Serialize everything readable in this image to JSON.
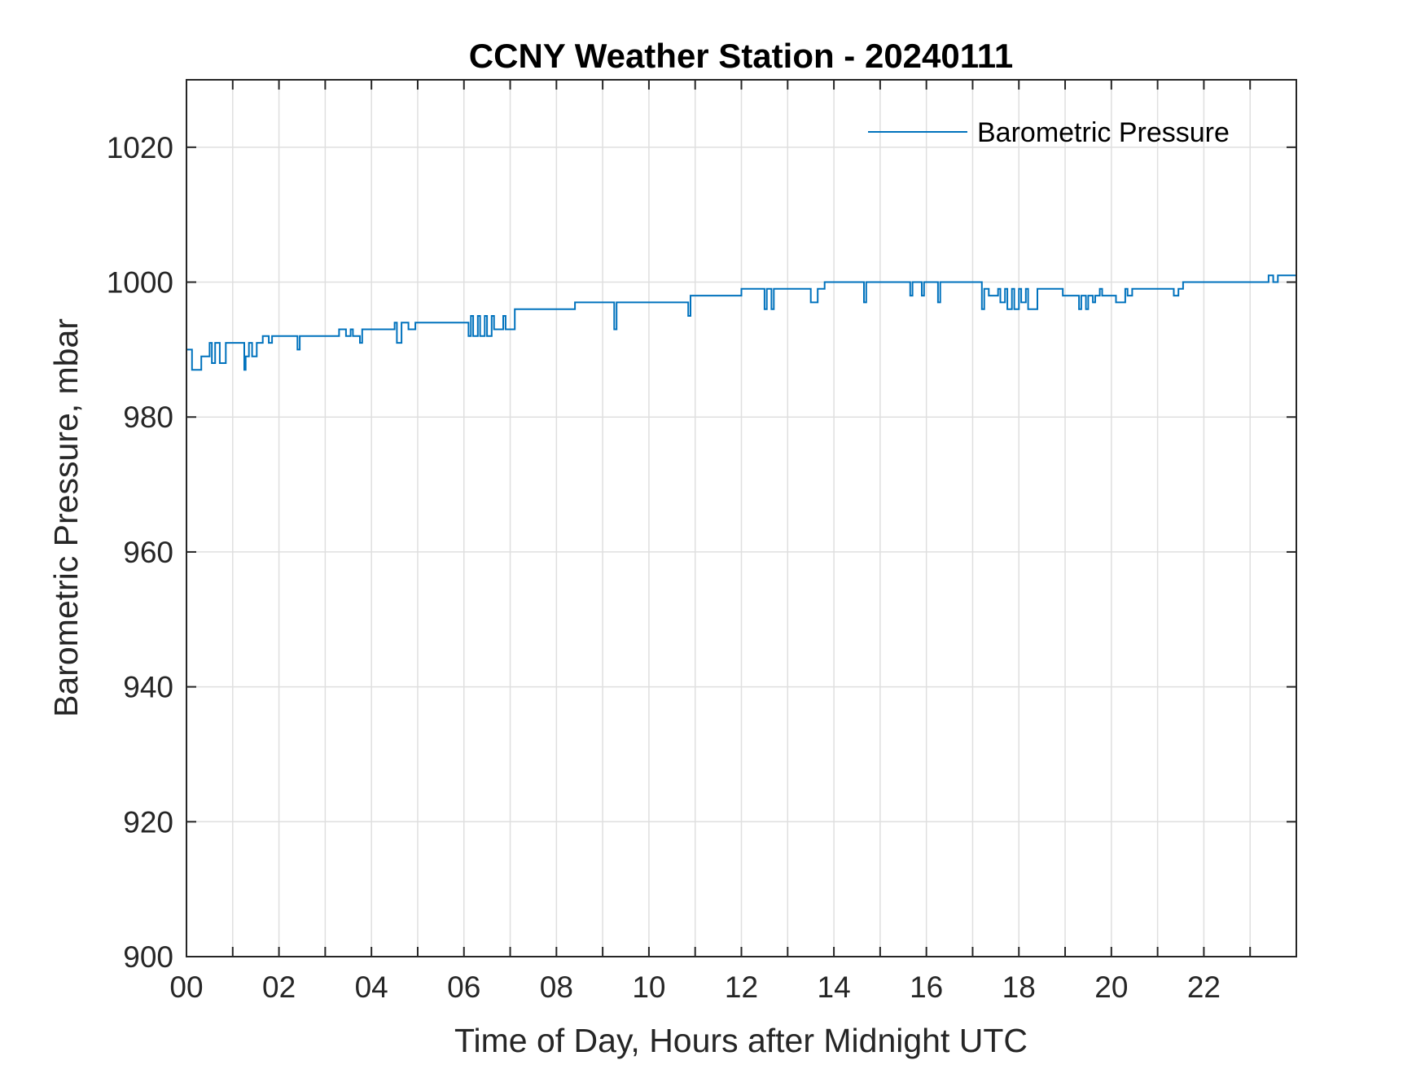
{
  "chart_data": {
    "type": "line",
    "title": "CCNY Weather Station - 20240111",
    "xlabel": "Time of Day, Hours after Midnight UTC",
    "ylabel": "Barometric Pressure, mbar",
    "xlim": [
      0,
      24
    ],
    "ylim": [
      900,
      1030
    ],
    "x_ticks": [
      0,
      2,
      4,
      6,
      8,
      10,
      12,
      14,
      16,
      18,
      20,
      22
    ],
    "x_tick_labels": [
      "00",
      "02",
      "04",
      "06",
      "08",
      "10",
      "12",
      "14",
      "16",
      "18",
      "20",
      "22"
    ],
    "x_minor_grid_step": 1,
    "y_ticks": [
      900,
      920,
      940,
      960,
      980,
      1000,
      1020
    ],
    "y_tick_labels": [
      "900",
      "920",
      "940",
      "960",
      "980",
      "1000",
      "1020"
    ],
    "grid": true,
    "legend_position": "top-right",
    "series": [
      {
        "name": "Barometric Pressure",
        "color": "#0072BD",
        "step": true,
        "x": [
          0,
          0.12,
          0.32,
          0.5,
          0.55,
          0.62,
          0.72,
          0.85,
          1.0,
          1.25,
          1.28,
          1.35,
          1.42,
          1.52,
          1.6,
          1.65,
          1.78,
          1.85,
          1.92,
          2.0,
          2.4,
          2.45,
          3.3,
          3.45,
          3.55,
          3.6,
          3.75,
          3.8,
          4.5,
          4.55,
          4.65,
          4.8,
          4.95,
          5.0,
          6.05,
          6.1,
          6.15,
          6.2,
          6.3,
          6.35,
          6.45,
          6.5,
          6.6,
          6.65,
          6.85,
          6.9,
          7.1,
          7.2,
          8.4,
          9.25,
          9.3,
          10.7,
          10.85,
          10.9,
          12.0,
          12.5,
          12.55,
          12.65,
          12.7,
          13.5,
          13.65,
          13.8,
          14.65,
          14.7,
          15.65,
          15.7,
          15.9,
          15.95,
          16.25,
          16.3,
          17.2,
          17.25,
          17.35,
          17.55,
          17.6,
          17.7,
          17.75,
          17.85,
          17.9,
          18.0,
          18.05,
          18.15,
          18.2,
          18.4,
          18.45,
          18.95,
          19.3,
          19.35,
          19.45,
          19.5,
          19.6,
          19.65,
          19.75,
          19.8,
          20.05,
          20.1,
          20.3,
          20.35,
          20.45,
          21.35,
          21.45,
          21.55,
          23.4,
          23.5,
          23.6,
          23.65,
          24.0
        ],
        "y": [
          990,
          987,
          989,
          991,
          988,
          991,
          988,
          991,
          991,
          987,
          989,
          991,
          989,
          991,
          991,
          992,
          991,
          992,
          992,
          992,
          990,
          992,
          993,
          992,
          993,
          992,
          991,
          993,
          994,
          991,
          994,
          993,
          994,
          994,
          994,
          992,
          995,
          992,
          995,
          992,
          995,
          992,
          995,
          993,
          995,
          993,
          996,
          996,
          997,
          993,
          997,
          997,
          995,
          998,
          999,
          996,
          999,
          996,
          999,
          997,
          999,
          1000,
          997,
          1000,
          998,
          1000,
          998,
          1000,
          997,
          1000,
          996,
          999,
          998,
          999,
          997,
          999,
          996,
          999,
          996,
          999,
          997,
          999,
          996,
          999,
          999,
          998,
          996,
          998,
          996,
          998,
          997,
          998,
          999,
          998,
          998,
          997,
          999,
          998,
          999,
          998,
          999,
          1000,
          1001,
          1000,
          1001,
          1001,
          1001
        ]
      }
    ]
  }
}
